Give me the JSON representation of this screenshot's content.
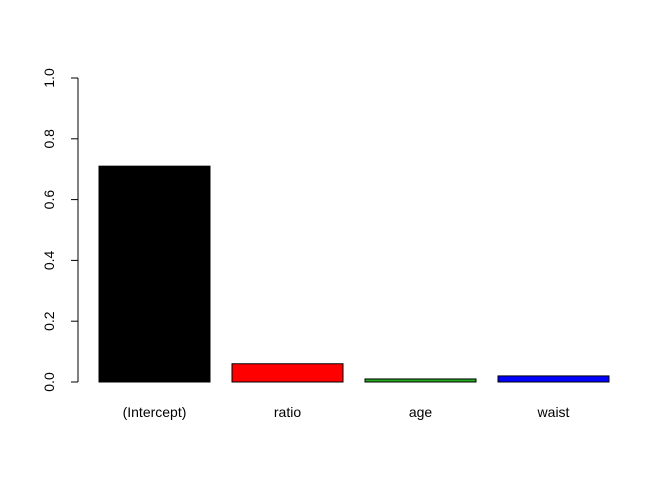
{
  "chart_data": {
    "type": "bar",
    "title": "",
    "xlabel": "",
    "ylabel": "",
    "categories": [
      "(Intercept)",
      "ratio",
      "age",
      "waist"
    ],
    "values": [
      0.71,
      0.06,
      0.01,
      0.02
    ],
    "colors": [
      "#000000",
      "#ff0000",
      "#22aa22",
      "#0000ff"
    ],
    "ylim": [
      0,
      1
    ],
    "yticks": [
      0.0,
      0.2,
      0.4,
      0.6,
      0.8,
      1.0
    ],
    "ytick_labels": [
      "0.0",
      "0.2",
      "0.4",
      "0.6",
      "0.8",
      "1.0"
    ],
    "grid": false,
    "legend": "none"
  }
}
